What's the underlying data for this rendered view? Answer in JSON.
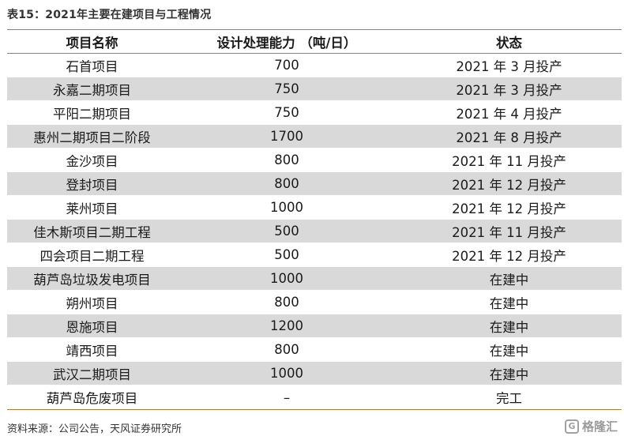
{
  "title": "表15：2021年主要在建项目与工程情况",
  "headers": [
    "项目名称",
    "设计处理能力 （吨/日）",
    "状态"
  ],
  "rows": [
    [
      "石首项目",
      "700",
      "2021 年 3 月投产"
    ],
    [
      "永嘉二期项目",
      "750",
      "2021 年 3 月投产"
    ],
    [
      "平阳二期项目",
      "750",
      "2021 年 4 月投产"
    ],
    [
      "惠州二期项目二阶段",
      "1700",
      "2021 年 8 月投产"
    ],
    [
      "金沙项目",
      "800",
      "2021 年 11 月投产"
    ],
    [
      "登封项目",
      "800",
      "2021 年 12 月投产"
    ],
    [
      "莱州项目",
      "1000",
      "2021 年 12 月投产"
    ],
    [
      "佳木斯项目二期工程",
      "500",
      "2021 年 11 月投产"
    ],
    [
      "四会项目二期工程",
      "500",
      "2021 年 12 月投产"
    ],
    [
      "葫芦岛垃圾发电项目",
      "1000",
      "在建中"
    ],
    [
      "朔州项目",
      "800",
      "在建中"
    ],
    [
      "恩施项目",
      "1200",
      "在建中"
    ],
    [
      "靖西项目",
      "800",
      "在建中"
    ],
    [
      "武汉二期项目",
      "1000",
      "在建中"
    ],
    [
      "葫芦岛危废项目",
      "–",
      "完工"
    ]
  ],
  "source": "资料来源：公司公告，天风证券研究所",
  "watermark": {
    "icon": "gelonghui-logo-icon",
    "icon_glyph": "G",
    "text": "格隆汇"
  }
}
